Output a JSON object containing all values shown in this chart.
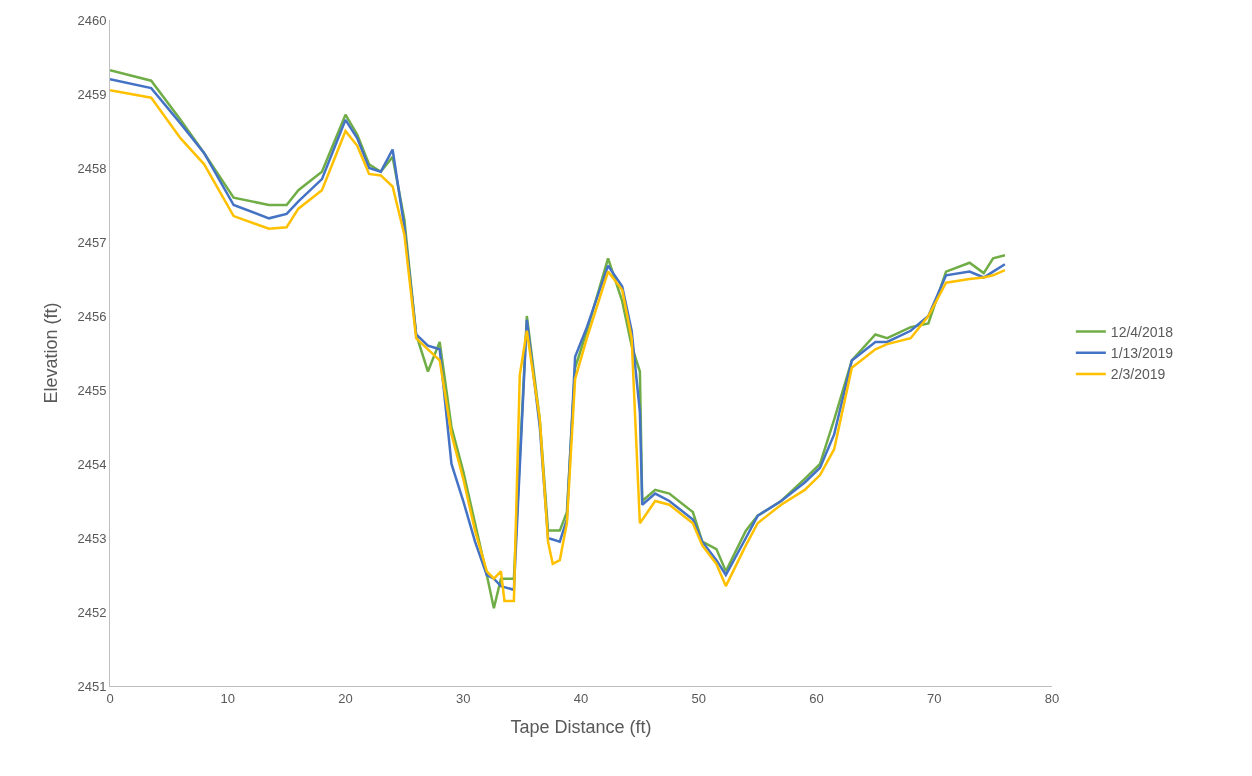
{
  "chart_data": {
    "type": "line",
    "xlabel": "Tape Distance (ft)",
    "ylabel": "Elevation (ft)",
    "xlim": [
      0,
      80
    ],
    "xticks": [
      0,
      10,
      20,
      30,
      40,
      50,
      60,
      70,
      80
    ],
    "ylim": [
      2451,
      2460
    ],
    "yticks": [
      2451,
      2452,
      2453,
      2454,
      2455,
      2456,
      2457,
      2458,
      2459,
      2460
    ],
    "grid": false,
    "legend": "right",
    "marker": "none",
    "line_style": "solid",
    "series": [
      {
        "name": "12/4/2018",
        "color": "#70ad47",
        "x": [
          0,
          3.5,
          6,
          8,
          10.5,
          13.5,
          15,
          16,
          18,
          20,
          21,
          22,
          23,
          24,
          25,
          26,
          27,
          28,
          29,
          30,
          31,
          32,
          32.6,
          33.2,
          34.3,
          35.4,
          36.5,
          37.2,
          38.2,
          38.8,
          39.5,
          40.5,
          42.3,
          43.5,
          44.3,
          45,
          45.2,
          46.3,
          47.5,
          49.5,
          50.3,
          51.5,
          52.3,
          54,
          55,
          57,
          59,
          60.3,
          61.5,
          63,
          65,
          66,
          68,
          69.5,
          71,
          73,
          74.2,
          75,
          76
        ],
        "values": [
          2459.32,
          2459.18,
          2458.65,
          2458.2,
          2457.6,
          2457.5,
          2457.5,
          2457.7,
          2457.95,
          2458.72,
          2458.45,
          2458.05,
          2457.95,
          2458.15,
          2457.3,
          2455.75,
          2455.25,
          2455.65,
          2454.5,
          2453.9,
          2453.2,
          2452.5,
          2452.05,
          2452.45,
          2452.45,
          2456.0,
          2454.6,
          2453.1,
          2453.1,
          2453.35,
          2455.3,
          2455.8,
          2456.78,
          2456.2,
          2455.6,
          2455.25,
          2453.5,
          2453.65,
          2453.6,
          2453.35,
          2452.95,
          2452.85,
          2452.55,
          2453.1,
          2453.3,
          2453.5,
          2453.8,
          2454.0,
          2454.6,
          2455.4,
          2455.75,
          2455.7,
          2455.85,
          2455.9,
          2456.6,
          2456.72,
          2456.58,
          2456.78,
          2456.82
        ]
      },
      {
        "name": "1/13/2019",
        "color": "#4472c4",
        "x": [
          0,
          3.5,
          6,
          8,
          10.5,
          13.5,
          15,
          16,
          18,
          20,
          21,
          22,
          23,
          24,
          25,
          26,
          27,
          28,
          29,
          30,
          31,
          32,
          32.6,
          33.2,
          34.3,
          35.4,
          36.5,
          37.2,
          38.2,
          38.8,
          39.5,
          40.5,
          42.3,
          43.5,
          44.3,
          45,
          45.2,
          46.3,
          47.5,
          49.5,
          50.3,
          51.5,
          52.3,
          54,
          55,
          57,
          59,
          60.3,
          61.5,
          63,
          65,
          66,
          68,
          69.5,
          71,
          73,
          74.2,
          75,
          76
        ],
        "values": [
          2459.2,
          2459.08,
          2458.6,
          2458.2,
          2457.5,
          2457.32,
          2457.38,
          2457.55,
          2457.85,
          2458.65,
          2458.4,
          2458.0,
          2457.95,
          2458.25,
          2457.2,
          2455.75,
          2455.6,
          2455.55,
          2454.0,
          2453.5,
          2452.95,
          2452.5,
          2452.45,
          2452.35,
          2452.3,
          2455.95,
          2454.5,
          2453.0,
          2452.95,
          2453.25,
          2455.45,
          2455.85,
          2456.68,
          2456.4,
          2455.8,
          2454.7,
          2453.45,
          2453.6,
          2453.5,
          2453.25,
          2452.95,
          2452.7,
          2452.5,
          2453.0,
          2453.3,
          2453.5,
          2453.75,
          2453.95,
          2454.4,
          2455.4,
          2455.65,
          2455.65,
          2455.8,
          2456.0,
          2456.55,
          2456.6,
          2456.52,
          2456.6,
          2456.7
        ]
      },
      {
        "name": "2/3/2019",
        "color": "#ffc000",
        "x": [
          0,
          3.5,
          6,
          8,
          10.5,
          13.5,
          15,
          16,
          18,
          20,
          21,
          22,
          23,
          24,
          25,
          26,
          27,
          28,
          29,
          30,
          31,
          32,
          32.6,
          33.2,
          33.5,
          34.3,
          34.8,
          35.4,
          36.5,
          37.2,
          37.6,
          38.2,
          38.8,
          39.5,
          40.5,
          42.3,
          43.5,
          44.3,
          45,
          46.3,
          47.5,
          49.5,
          50.3,
          51.5,
          52.3,
          54,
          55,
          57,
          59,
          60.3,
          61.5,
          63,
          65,
          66,
          68,
          69.5,
          71,
          73,
          74.2,
          75,
          76
        ],
        "values": [
          2459.05,
          2458.95,
          2458.4,
          2458.05,
          2457.35,
          2457.18,
          2457.2,
          2457.45,
          2457.7,
          2458.5,
          2458.3,
          2457.92,
          2457.9,
          2457.75,
          2457.1,
          2455.7,
          2455.55,
          2455.4,
          2454.4,
          2453.8,
          2453.1,
          2452.55,
          2452.45,
          2452.55,
          2452.15,
          2452.15,
          2455.2,
          2455.8,
          2454.6,
          2452.95,
          2452.65,
          2452.7,
          2453.2,
          2455.15,
          2455.7,
          2456.6,
          2456.35,
          2455.7,
          2453.2,
          2453.5,
          2453.45,
          2453.2,
          2452.9,
          2452.65,
          2452.35,
          2452.9,
          2453.2,
          2453.45,
          2453.65,
          2453.85,
          2454.2,
          2455.3,
          2455.55,
          2455.62,
          2455.7,
          2456.0,
          2456.45,
          2456.5,
          2456.52,
          2456.55,
          2456.62
        ]
      }
    ]
  }
}
